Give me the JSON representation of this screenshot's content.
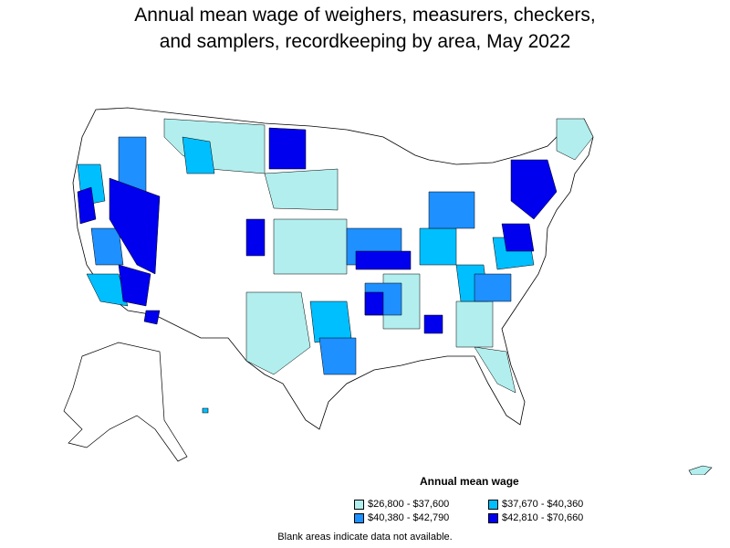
{
  "title_line1": "Annual mean wage of weighers, measurers, checkers,",
  "title_line2": "and samplers, recordkeeping by area, May 2022",
  "legend": {
    "title": "Annual mean wage",
    "items": [
      {
        "label": "$26,800 - $37,600",
        "color": "#b2eeee"
      },
      {
        "label": "$37,670 - $40,360",
        "color": "#00bfff"
      },
      {
        "label": "$40,380 - $42,790",
        "color": "#1e90ff"
      },
      {
        "label": "$42,810 - $70,660",
        "color": "#0000ee"
      }
    ]
  },
  "note": "Blank areas indicate data not available."
}
